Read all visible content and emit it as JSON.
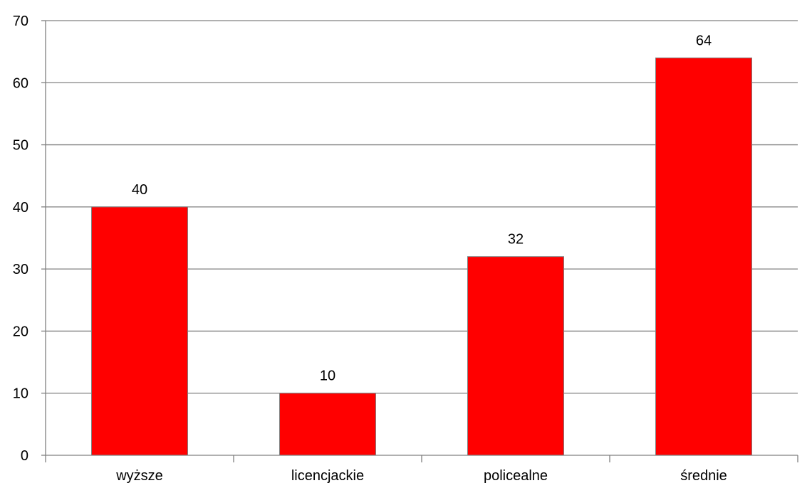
{
  "chart_data": {
    "type": "bar",
    "categories": [
      "wyższe",
      "licencjackie",
      "policealne",
      "średnie"
    ],
    "values": [
      40,
      10,
      32,
      64
    ],
    "data_labels": [
      "40",
      "10",
      "32",
      "64"
    ],
    "title": "",
    "xlabel": "",
    "ylabel": "",
    "ylim": [
      0,
      70
    ],
    "yticks": [
      0,
      10,
      20,
      30,
      40,
      50,
      60,
      70
    ],
    "ytick_labels": [
      "0",
      "10",
      "20",
      "30",
      "40",
      "50",
      "60",
      "70"
    ],
    "grid": true,
    "legend": "none",
    "bar_color": "#FF0000",
    "grid_color": "#808080",
    "axis_color": "#808080"
  }
}
